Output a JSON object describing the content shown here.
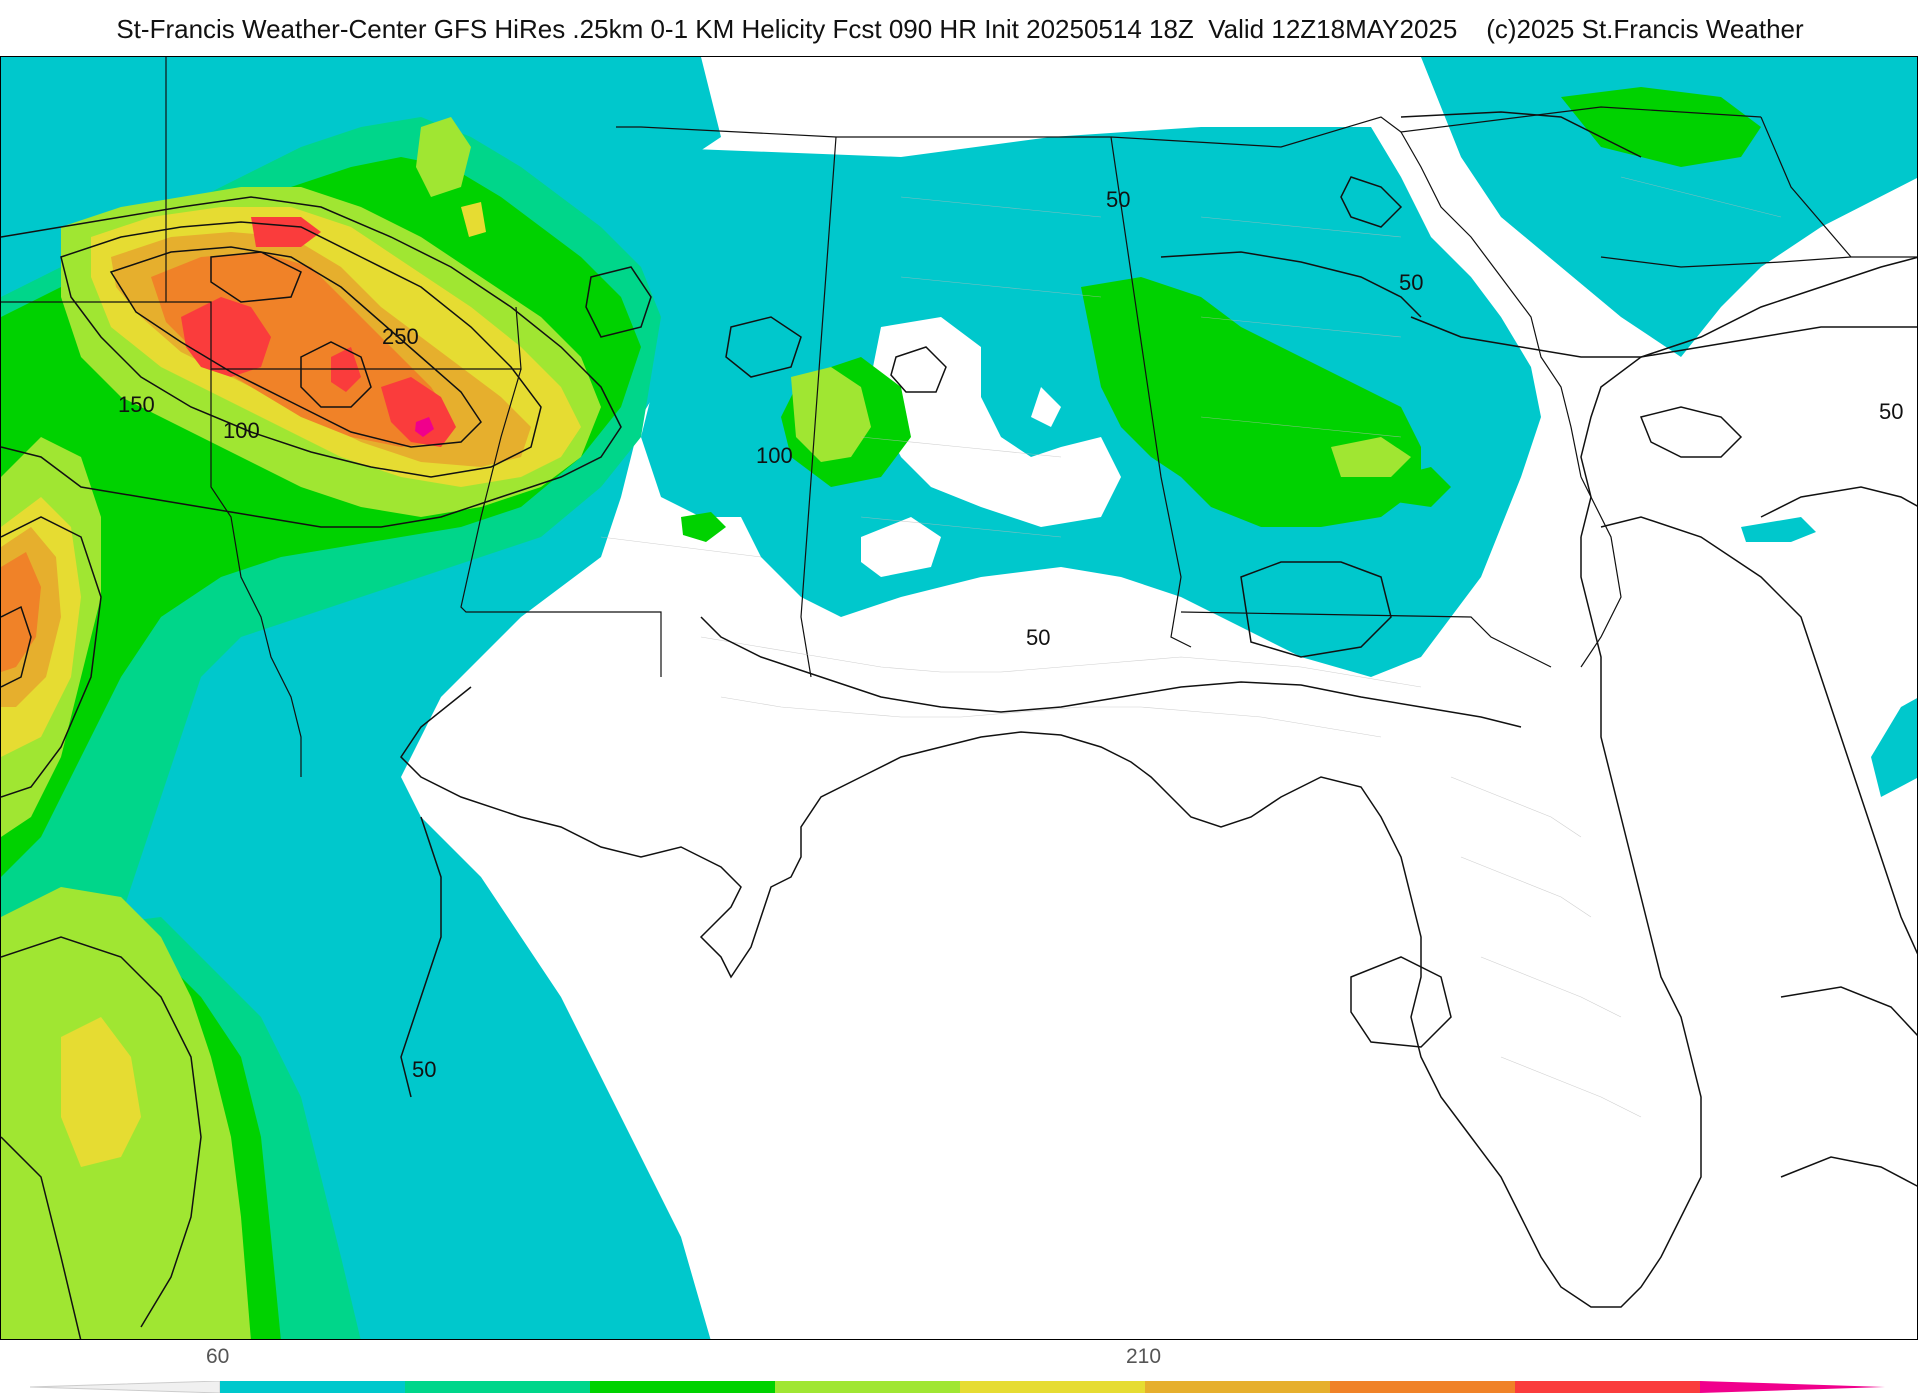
{
  "header": {
    "title": "St-Francis Weather-Center GFS HiRes .25km 0-1 KM Helicity Fcst 090 HR Init 20250514 18Z  Valid 12Z18MAY2025    (c)2025 St.Francis Weather"
  },
  "map": {
    "region": "Southeastern United States and Gulf of Mexico",
    "field": "0-1 KM Helicity",
    "contour_labels": [
      "50",
      "50",
      "50",
      "50",
      "50",
      "100",
      "100",
      "150",
      "250"
    ]
  },
  "colorbar": {
    "tick_labels": [
      "60",
      "210"
    ],
    "colors": [
      "#00c8cc",
      "#00d68a",
      "#00d200",
      "#a0e632",
      "#e6dc32",
      "#e6af2d",
      "#f08228",
      "#fa3c3c",
      "#f0008c"
    ]
  }
}
